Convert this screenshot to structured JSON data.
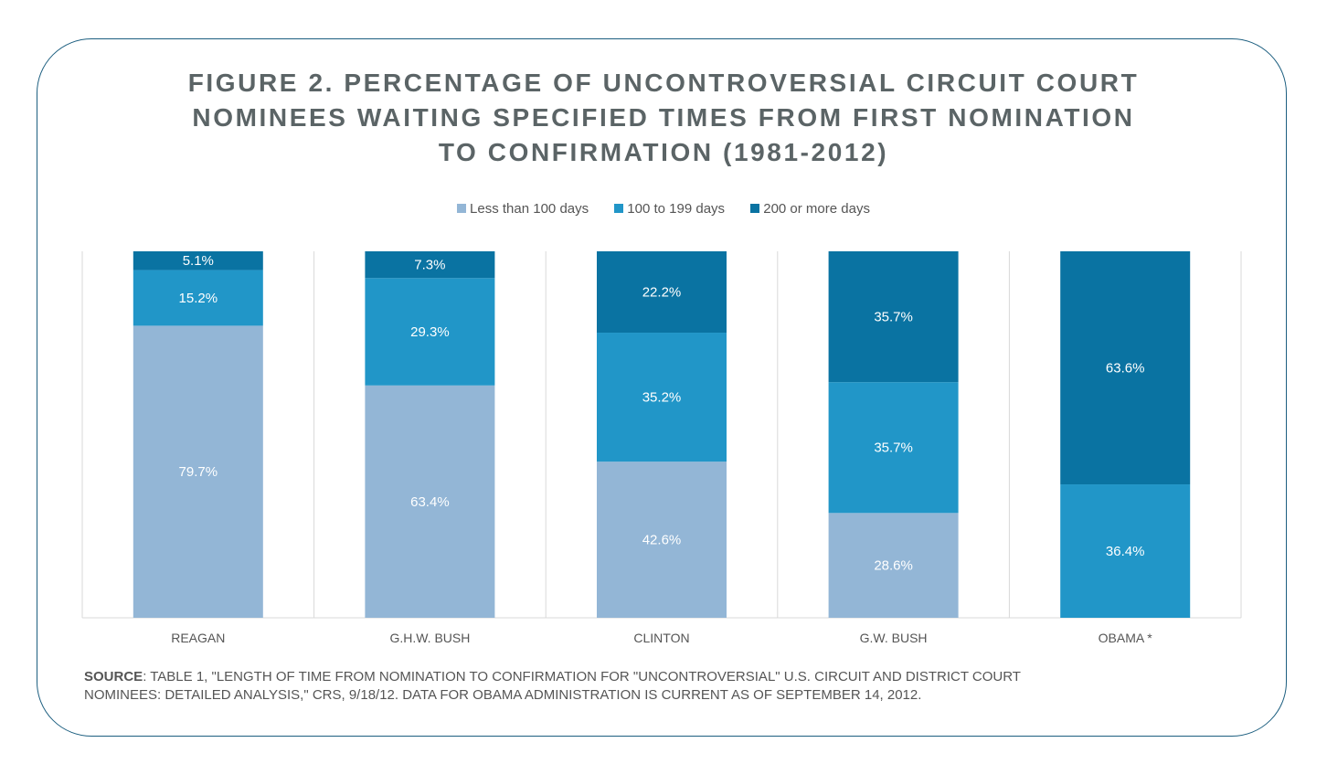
{
  "title_lines": [
    "FIGURE 2. PERCENTAGE OF UNCONTROVERSIAL CIRCUIT COURT",
    "NOMINEES WAITING SPECIFIED TIMES FROM FIRST NOMINATION",
    "TO CONFIRMATION (1981-2012)"
  ],
  "source": {
    "label": "SOURCE",
    "text_line1": ": TABLE 1, \"LENGTH OF TIME FROM NOMINATION TO CONFIRMATION FOR \"UNCONTROVERSIAL\" U.S. CIRCUIT AND DISTRICT COURT",
    "text_line2": "NOMINEES: DETAILED ANALYSIS,\" CRS, 9/18/12. DATA FOR OBAMA ADMINISTRATION IS CURRENT AS OF SEPTEMBER 14, 2012."
  },
  "chart_data": {
    "type": "bar",
    "stacked": true,
    "normalized_percent": true,
    "categories": [
      "REAGAN",
      "G.H.W. BUSH",
      "CLINTON",
      "G.W. BUSH",
      "OBAMA *"
    ],
    "series": [
      {
        "name": "Less than 100 days",
        "color": "#93b6d6",
        "values": [
          79.7,
          63.4,
          42.6,
          28.6,
          0
        ]
      },
      {
        "name": "100 to 199 days",
        "color": "#2196c8",
        "values": [
          15.2,
          29.3,
          35.2,
          35.7,
          36.4
        ]
      },
      {
        "name": "200 or more days",
        "color": "#0a73a2",
        "values": [
          5.1,
          7.3,
          22.2,
          35.7,
          63.6
        ]
      }
    ],
    "ylim": [
      0,
      100
    ],
    "legend": "top-center",
    "grid": "vertical-separators"
  }
}
